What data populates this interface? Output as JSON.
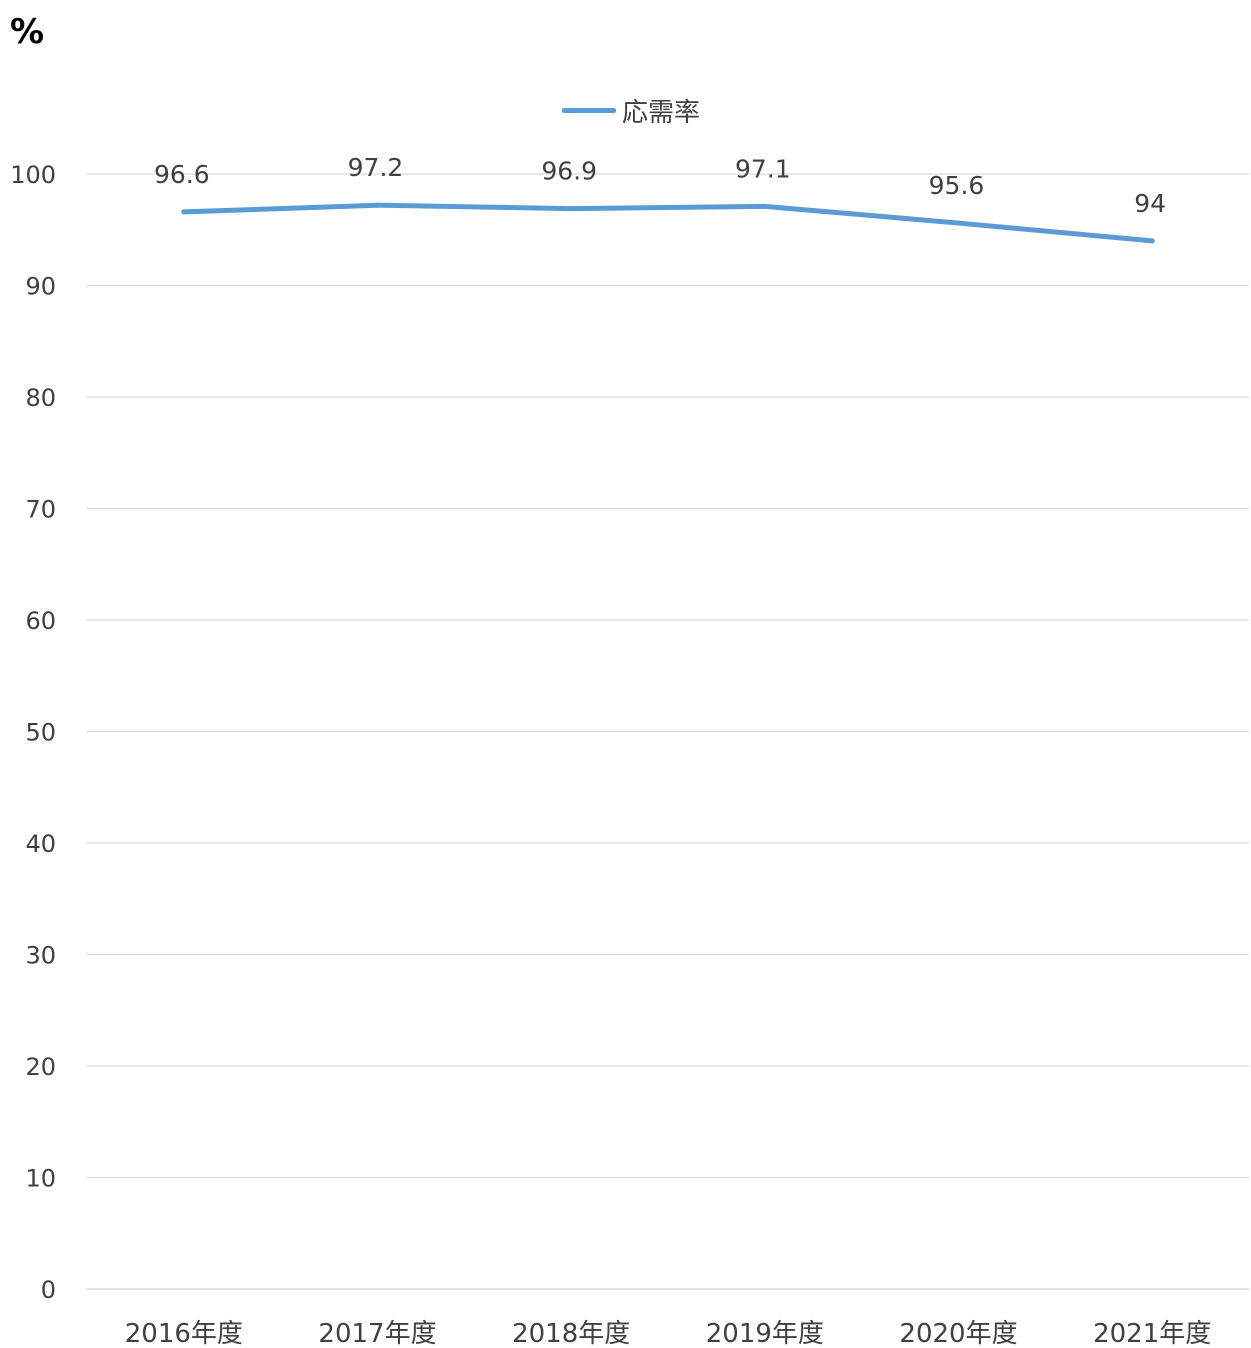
{
  "chart_data": {
    "type": "line",
    "y_unit_label": "%",
    "categories": [
      "2016年度",
      "2017年度",
      "2018年度",
      "2019年度",
      "2020年度",
      "2021年度"
    ],
    "series": [
      {
        "name": "応需率",
        "values": [
          96.6,
          97.2,
          96.9,
          97.1,
          95.6,
          94
        ],
        "color": "#5b9bd5"
      }
    ],
    "data_labels": [
      "96.6",
      "97.2",
      "96.9",
      "97.1",
      "95.6",
      "94"
    ],
    "ylim": [
      0,
      100
    ],
    "yticks": [
      0,
      10,
      20,
      30,
      40,
      50,
      60,
      70,
      80,
      90,
      100
    ],
    "grid": true,
    "legend_position": "top"
  }
}
